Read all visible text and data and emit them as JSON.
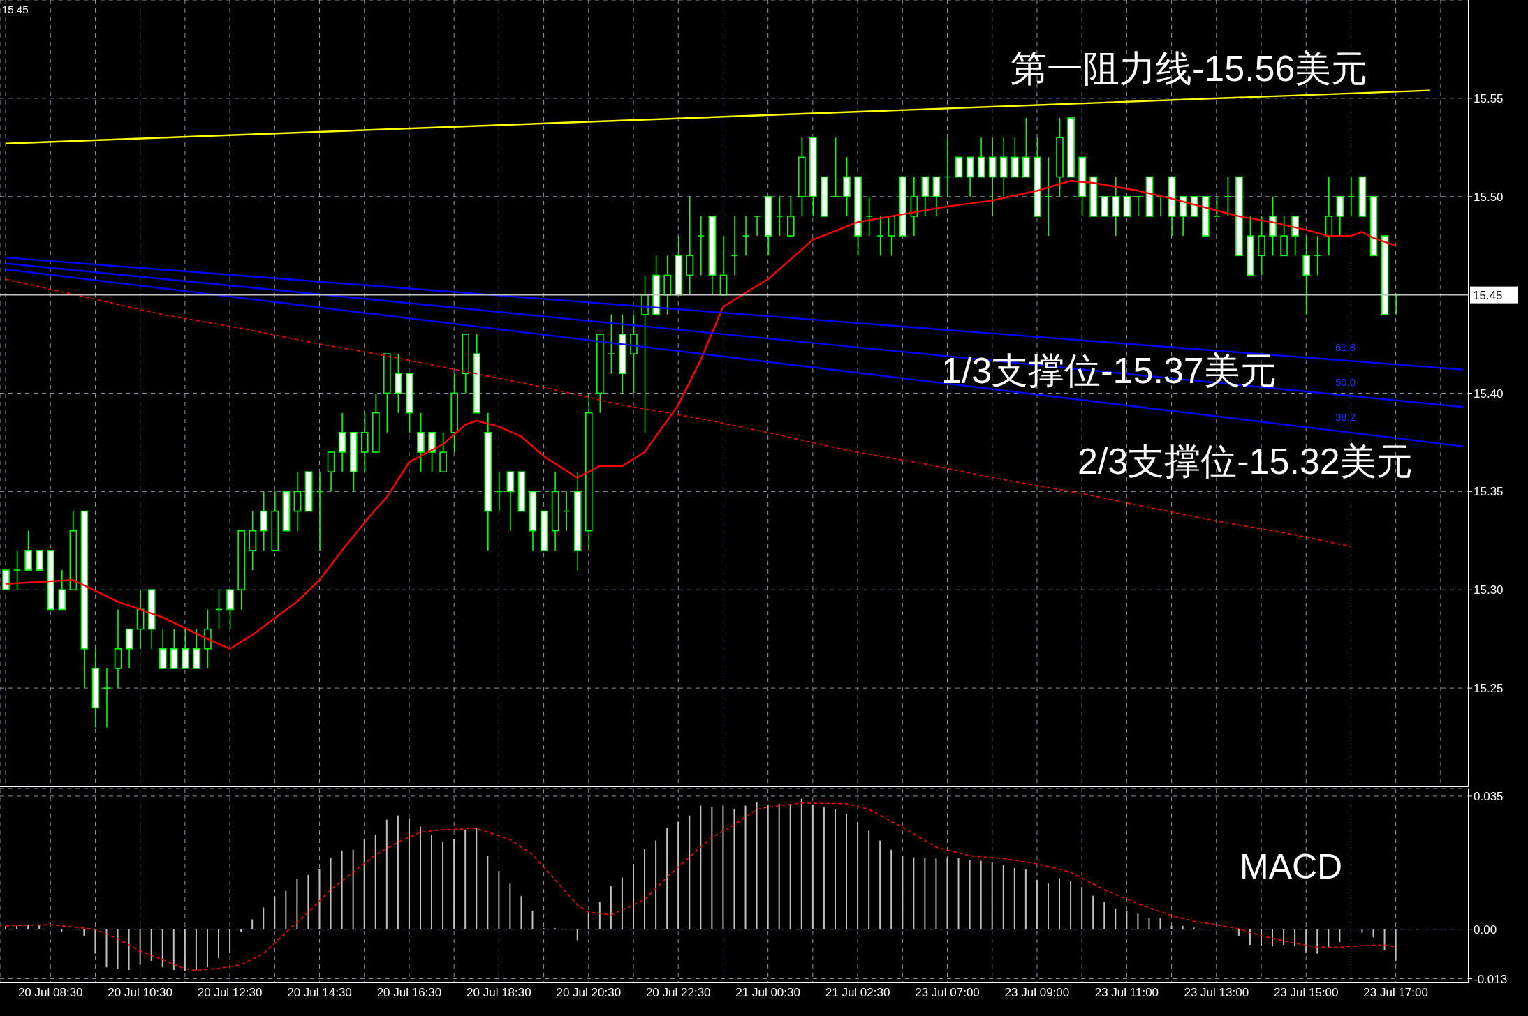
{
  "chart_data": [
    {
      "type": "candlestick",
      "color": "#00ff00",
      "grid": true,
      "ylim": [
        15.2,
        15.6
      ],
      "yticks": [
        15.25,
        {
          "value": 15.3,
          "label": "15.30"
        },
        15.35,
        {
          "value": 15.4,
          "label": "15.40"
        },
        {
          "value": 15.5,
          "label": "15.50"
        },
        15.55
      ],
      "ref_lines": [
        {
          "axis": "y",
          "value": 15.45,
          "label": "15.45",
          "color": "#c0c0c0"
        }
      ],
      "annotations": [
        "15.45",
        "第一阻力线-15.56美元",
        "1/3支撑位-15.37美元",
        "2/3支撑位-15.32美元",
        "61.8",
        "50.0",
        "38.2"
      ],
      "categories": [
        null,
        null,
        null,
        null,
        null,
        null,
        null,
        null,
        null,
        null,
        null,
        null,
        null,
        null,
        null,
        null,
        null,
        null,
        null,
        null,
        null,
        null,
        null,
        null,
        null,
        null,
        null,
        null,
        null,
        null,
        null,
        null,
        null,
        null,
        null,
        null,
        null,
        null,
        null,
        null,
        null,
        null,
        null,
        null,
        null,
        null,
        null,
        null,
        null,
        null,
        null,
        null,
        null,
        null,
        null,
        null,
        null,
        null,
        null,
        null,
        null,
        null,
        null,
        null,
        null,
        null,
        null,
        null,
        null,
        null,
        null,
        null,
        null,
        null,
        null,
        null,
        null,
        null,
        null,
        null,
        null,
        null,
        null,
        null,
        null,
        null,
        null,
        null,
        null,
        null,
        null,
        null,
        null,
        null,
        null,
        null,
        null,
        null,
        null,
        null,
        null,
        null,
        null,
        null,
        null,
        null,
        null,
        null,
        null,
        null,
        null,
        null,
        null,
        null,
        null,
        null,
        null,
        null,
        null,
        null,
        null,
        null,
        null,
        null,
        null,
        null,
        null,
        null,
        null,
        null,
        null
      ],
      "ohlc": [
        [
          15.31,
          15.31,
          15.3,
          15.3
        ],
        [
          15.31,
          15.32,
          15.3,
          15.31
        ],
        [
          15.32,
          15.33,
          15.31,
          15.31
        ],
        [
          15.32,
          15.32,
          15.31,
          15.31
        ],
        [
          15.32,
          15.32,
          15.29,
          15.29
        ],
        [
          15.3,
          15.31,
          15.29,
          15.29
        ],
        [
          15.3,
          15.34,
          15.3,
          15.33
        ],
        [
          15.34,
          15.34,
          15.25,
          15.27
        ],
        [
          15.26,
          15.27,
          15.23,
          15.24
        ],
        [
          15.25,
          15.26,
          15.23,
          15.25
        ],
        [
          15.26,
          15.29,
          15.25,
          15.27
        ],
        [
          15.28,
          15.28,
          15.26,
          15.27
        ],
        [
          15.28,
          15.3,
          15.27,
          15.29
        ],
        [
          15.3,
          15.3,
          15.27,
          15.28
        ],
        [
          15.27,
          15.28,
          15.26,
          15.26
        ],
        [
          15.27,
          15.28,
          15.26,
          15.26
        ],
        [
          15.27,
          15.28,
          15.26,
          15.26
        ],
        [
          15.27,
          15.28,
          15.26,
          15.26
        ],
        [
          15.27,
          15.29,
          15.26,
          15.28
        ],
        [
          15.29,
          15.3,
          15.28,
          15.29
        ],
        [
          15.3,
          15.3,
          15.28,
          15.29
        ],
        [
          15.3,
          15.33,
          15.29,
          15.33
        ],
        [
          15.32,
          15.34,
          15.31,
          15.33
        ],
        [
          15.34,
          15.35,
          15.32,
          15.33
        ],
        [
          15.32,
          15.35,
          15.32,
          15.34
        ],
        [
          15.35,
          15.35,
          15.33,
          15.33
        ],
        [
          15.34,
          15.36,
          15.33,
          15.35
        ],
        [
          15.36,
          15.36,
          15.34,
          15.34
        ],
        [
          15.35,
          15.36,
          15.32,
          15.35
        ],
        [
          15.36,
          15.37,
          15.35,
          15.37
        ],
        [
          15.38,
          15.39,
          15.36,
          15.37
        ],
        [
          15.38,
          15.38,
          15.35,
          15.36
        ],
        [
          15.37,
          15.39,
          15.36,
          15.38
        ],
        [
          15.37,
          15.4,
          15.37,
          15.39
        ],
        [
          15.4,
          15.42,
          15.38,
          15.42
        ],
        [
          15.41,
          15.42,
          15.39,
          15.4
        ],
        [
          15.41,
          15.41,
          15.38,
          15.39
        ],
        [
          15.38,
          15.39,
          15.36,
          15.37
        ],
        [
          15.38,
          15.38,
          15.36,
          15.37
        ],
        [
          15.36,
          15.38,
          15.36,
          15.37
        ],
        [
          15.38,
          15.41,
          15.37,
          15.4
        ],
        [
          15.41,
          15.43,
          15.4,
          15.43
        ],
        [
          15.42,
          15.43,
          15.39,
          15.39
        ],
        [
          15.38,
          15.39,
          15.32,
          15.34
        ],
        [
          15.35,
          15.36,
          15.34,
          15.35
        ],
        [
          15.36,
          15.36,
          15.33,
          15.35
        ],
        [
          15.36,
          15.36,
          15.34,
          15.34
        ],
        [
          15.35,
          15.35,
          15.32,
          15.33
        ],
        [
          15.34,
          15.34,
          15.32,
          15.32
        ],
        [
          15.33,
          15.36,
          15.32,
          15.35
        ],
        [
          15.34,
          15.35,
          15.33,
          15.34
        ],
        [
          15.35,
          15.36,
          15.31,
          15.32
        ],
        [
          15.33,
          15.4,
          15.32,
          15.39
        ],
        [
          15.4,
          15.43,
          15.39,
          15.43
        ],
        [
          15.42,
          15.44,
          15.41,
          15.42
        ],
        [
          15.43,
          15.44,
          15.4,
          15.41
        ],
        [
          15.42,
          15.44,
          15.4,
          15.43
        ],
        [
          15.44,
          15.46,
          15.38,
          15.45
        ],
        [
          15.46,
          15.47,
          15.44,
          15.44
        ],
        [
          15.45,
          15.47,
          15.44,
          15.46
        ],
        [
          15.47,
          15.48,
          15.45,
          15.45
        ],
        [
          15.46,
          15.5,
          15.45,
          15.47
        ],
        [
          15.48,
          15.49,
          15.46,
          15.48
        ],
        [
          15.49,
          15.49,
          15.45,
          15.46
        ],
        [
          15.45,
          15.48,
          15.45,
          15.46
        ],
        [
          15.47,
          15.49,
          15.46,
          15.47
        ],
        [
          15.48,
          15.49,
          15.47,
          15.48
        ],
        [
          15.49,
          15.49,
          15.48,
          15.49
        ],
        [
          15.5,
          15.5,
          15.47,
          15.48
        ],
        [
          15.49,
          15.5,
          15.48,
          15.49
        ],
        [
          15.48,
          15.5,
          15.48,
          15.49
        ],
        [
          15.5,
          15.53,
          15.49,
          15.52
        ],
        [
          15.53,
          15.53,
          15.49,
          15.5
        ],
        [
          15.51,
          15.51,
          15.49,
          15.49
        ],
        [
          15.5,
          15.53,
          15.5,
          15.5
        ],
        [
          15.51,
          15.52,
          15.49,
          15.5
        ],
        [
          15.51,
          15.51,
          15.47,
          15.48
        ],
        [
          15.49,
          15.5,
          15.48,
          15.49
        ],
        [
          15.48,
          15.49,
          15.47,
          15.48
        ],
        [
          15.48,
          15.49,
          15.47,
          15.49
        ],
        [
          15.51,
          15.51,
          15.48,
          15.48
        ],
        [
          15.49,
          15.51,
          15.48,
          15.5
        ],
        [
          15.51,
          15.51,
          15.49,
          15.5
        ],
        [
          15.51,
          15.51,
          15.49,
          15.5
        ],
        [
          15.51,
          15.53,
          15.5,
          15.51
        ],
        [
          15.52,
          15.52,
          15.51,
          15.51
        ],
        [
          15.52,
          15.52,
          15.5,
          15.51
        ],
        [
          15.52,
          15.53,
          15.51,
          15.51
        ],
        [
          15.52,
          15.53,
          15.49,
          15.51
        ],
        [
          15.52,
          15.53,
          15.5,
          15.51
        ],
        [
          15.52,
          15.53,
          15.51,
          15.51
        ],
        [
          15.52,
          15.54,
          15.51,
          15.51
        ],
        [
          15.52,
          15.53,
          15.49,
          15.49
        ],
        [
          15.5,
          15.52,
          15.48,
          15.5
        ],
        [
          15.51,
          15.54,
          15.5,
          15.53
        ],
        [
          15.54,
          15.54,
          15.51,
          15.51
        ],
        [
          15.52,
          15.52,
          15.49,
          15.5
        ],
        [
          15.51,
          15.51,
          15.49,
          15.49
        ],
        [
          15.5,
          15.5,
          15.49,
          15.49
        ],
        [
          15.5,
          15.51,
          15.48,
          15.49
        ],
        [
          15.5,
          15.5,
          15.49,
          15.49
        ],
        [
          15.5,
          15.5,
          15.49,
          15.5
        ],
        [
          15.51,
          15.51,
          15.49,
          15.49
        ],
        [
          15.5,
          15.5,
          15.49,
          15.5
        ],
        [
          15.51,
          15.51,
          15.48,
          15.49
        ],
        [
          15.5,
          15.5,
          15.48,
          15.49
        ],
        [
          15.5,
          15.5,
          15.49,
          15.49
        ],
        [
          15.5,
          15.5,
          15.48,
          15.48
        ],
        [
          15.49,
          15.5,
          15.49,
          15.49
        ],
        [
          15.5,
          15.51,
          15.49,
          15.5
        ],
        [
          15.51,
          15.51,
          15.47,
          15.47
        ],
        [
          15.48,
          15.49,
          15.46,
          15.46
        ],
        [
          15.47,
          15.49,
          15.46,
          15.48
        ],
        [
          15.49,
          15.5,
          15.47,
          15.48
        ],
        [
          15.47,
          15.49,
          15.47,
          15.48
        ],
        [
          15.49,
          15.49,
          15.47,
          15.48
        ],
        [
          15.47,
          15.48,
          15.44,
          15.46
        ],
        [
          15.47,
          15.48,
          15.46,
          15.47
        ],
        [
          15.48,
          15.51,
          15.47,
          15.49
        ],
        [
          15.5,
          15.5,
          15.48,
          15.49
        ],
        [
          15.5,
          15.51,
          15.49,
          15.5
        ],
        [
          15.51,
          15.51,
          15.49,
          15.49
        ],
        [
          15.5,
          15.5,
          15.47,
          15.47
        ],
        [
          15.48,
          15.48,
          15.44,
          15.44
        ],
        [
          15.45,
          15.45,
          15.44,
          15.45
        ],
        null,
        null,
        null,
        null,
        null,
        null
      ],
      "series": [
        {
          "type": "line",
          "color": "#ff0000",
          "values": [
            15.303,
            null,
            null,
            null,
            null,
            null,
            15.305,
            null,
            null,
            null,
            15.294,
            null,
            null,
            null,
            15.286,
            null,
            null,
            null,
            15.275,
            null,
            15.27,
            null,
            15.277,
            null,
            null,
            null,
            15.294,
            null,
            15.305,
            null,
            15.32,
            null,
            null,
            15.341,
            15.347,
            null,
            15.365,
            null,
            null,
            15.374,
            null,
            15.384,
            15.386,
            null,
            15.383,
            null,
            15.378,
            null,
            15.368,
            null,
            null,
            15.357,
            null,
            15.363,
            null,
            15.363,
            null,
            15.37,
            null,
            null,
            15.394,
            null,
            15.417,
            null,
            15.444,
            null,
            15.451,
            null,
            15.458,
            null,
            15.468,
            null,
            15.478,
            null,
            null,
            null,
            15.487,
            null,
            null,
            null,
            15.491,
            null,
            null,
            null,
            15.495,
            null,
            null,
            null,
            15.498,
            null,
            null,
            null,
            15.503,
            null,
            null,
            15.508,
            null,
            15.507,
            null,
            null,
            null,
            15.503,
            null,
            null,
            15.499,
            null,
            null,
            null,
            15.493,
            null,
            15.49,
            null,
            null,
            15.487,
            null,
            null,
            15.483,
            null,
            15.48,
            null,
            15.48,
            15.482,
            15.479,
            null,
            15.475,
            null,
            null,
            null,
            null,
            null,
            null
          ]
        },
        {
          "type": "line",
          "color": "#ff0000",
          "line_style": "dashed",
          "values": [
            15.458,
            null,
            null,
            null,
            null,
            null,
            null,
            15.449,
            null,
            null,
            null,
            null,
            null,
            null,
            15.44,
            null,
            null,
            null,
            null,
            null,
            null,
            15.433,
            null,
            null,
            null,
            null,
            null,
            null,
            15.425,
            null,
            null,
            null,
            null,
            null,
            15.419,
            null,
            null,
            null,
            null,
            null,
            null,
            15.411,
            null,
            null,
            null,
            null,
            null,
            null,
            15.403,
            null,
            null,
            null,
            null,
            null,
            null,
            15.394,
            null,
            null,
            null,
            null,
            null,
            null,
            15.387,
            null,
            null,
            null,
            null,
            null,
            15.38,
            null,
            null,
            null,
            null,
            null,
            null,
            15.371,
            null,
            null,
            null,
            null,
            null,
            null,
            15.364,
            null,
            null,
            null,
            null,
            null,
            null,
            15.356,
            null,
            null,
            null,
            null,
            null,
            null,
            15.349,
            null,
            null,
            null,
            null,
            15.343,
            null,
            null,
            null,
            null,
            null,
            null,
            15.335,
            null,
            null,
            null,
            null,
            null,
            null,
            15.328,
            null,
            null,
            null,
            null,
            15.322,
            null,
            null,
            null,
            null,
            null,
            null,
            null,
            null,
            null,
            null
          ]
        },
        {
          "type": "line",
          "color": "#ffff00",
          "values": [
            15.527,
            null,
            null,
            null,
            null,
            null,
            null,
            null,
            null,
            null,
            null,
            null,
            null,
            null,
            null,
            null,
            null,
            null,
            null,
            null,
            null,
            null,
            null,
            null,
            null,
            null,
            null,
            null,
            null,
            null,
            null,
            null,
            null,
            null,
            null,
            null,
            null,
            null,
            null,
            null,
            null,
            null,
            null,
            null,
            null,
            null,
            null,
            null,
            null,
            null,
            null,
            null,
            null,
            null,
            null,
            null,
            null,
            null,
            null,
            null,
            null,
            null,
            null,
            null,
            null,
            null,
            null,
            null,
            null,
            null,
            null,
            null,
            null,
            null,
            null,
            null,
            null,
            null,
            null,
            null,
            null,
            null,
            null,
            null,
            null,
            null,
            null,
            null,
            null,
            null,
            null,
            null,
            null,
            null,
            null,
            null,
            null,
            null,
            null,
            null,
            null,
            null,
            null,
            null,
            null,
            null,
            null,
            null,
            null,
            null,
            null,
            null,
            null,
            null,
            null,
            null,
            null,
            null,
            null,
            null,
            null,
            null,
            null,
            null,
            null,
            null,
            null,
            15.554,
            null,
            null,
            null
          ]
        },
        {
          "type": "line",
          "color": "#0000ff",
          "values": [
            15.469,
            null,
            null,
            null,
            null,
            null,
            null,
            null,
            null,
            null,
            null,
            null,
            null,
            null,
            null,
            null,
            null,
            null,
            null,
            null,
            null,
            null,
            null,
            null,
            null,
            null,
            null,
            null,
            null,
            null,
            null,
            null,
            null,
            null,
            null,
            null,
            null,
            null,
            null,
            null,
            null,
            null,
            null,
            null,
            null,
            null,
            null,
            null,
            null,
            null,
            null,
            null,
            null,
            null,
            null,
            null,
            null,
            null,
            null,
            null,
            null,
            null,
            null,
            null,
            null,
            null,
            null,
            null,
            null,
            null,
            null,
            null,
            null,
            null,
            null,
            null,
            null,
            null,
            null,
            null,
            null,
            null,
            null,
            null,
            null,
            null,
            null,
            null,
            null,
            null,
            null,
            null,
            null,
            null,
            null,
            null,
            null,
            null,
            null,
            null,
            null,
            null,
            null,
            null,
            null,
            null,
            null,
            null,
            null,
            null,
            null,
            null,
            null,
            null,
            null,
            null,
            null,
            null,
            null,
            null,
            null,
            null,
            null,
            null,
            null,
            null,
            null,
            null,
            null,
            null,
            15.412
          ]
        },
        {
          "type": "line",
          "color": "#0000ff",
          "values": [
            15.466,
            null,
            null,
            null,
            null,
            null,
            null,
            null,
            null,
            null,
            null,
            null,
            null,
            null,
            null,
            null,
            null,
            null,
            null,
            null,
            null,
            null,
            null,
            null,
            null,
            null,
            null,
            null,
            null,
            null,
            null,
            null,
            null,
            null,
            null,
            null,
            null,
            null,
            null,
            null,
            null,
            null,
            null,
            null,
            null,
            null,
            null,
            null,
            null,
            null,
            null,
            null,
            null,
            null,
            null,
            null,
            null,
            null,
            null,
            null,
            null,
            null,
            null,
            null,
            null,
            null,
            null,
            null,
            null,
            null,
            null,
            null,
            null,
            null,
            null,
            null,
            null,
            null,
            null,
            null,
            null,
            null,
            null,
            null,
            null,
            null,
            null,
            null,
            null,
            null,
            null,
            null,
            null,
            null,
            null,
            null,
            null,
            null,
            null,
            null,
            null,
            null,
            null,
            null,
            null,
            null,
            null,
            null,
            null,
            null,
            null,
            null,
            null,
            null,
            null,
            null,
            null,
            null,
            null,
            null,
            null,
            null,
            null,
            null,
            null,
            null,
            null,
            null,
            null,
            null,
            15.393
          ]
        },
        {
          "type": "line",
          "color": "#0000ff",
          "values": [
            15.463,
            null,
            null,
            null,
            null,
            null,
            null,
            null,
            null,
            null,
            null,
            null,
            null,
            null,
            null,
            null,
            null,
            null,
            null,
            null,
            null,
            null,
            null,
            null,
            null,
            null,
            null,
            null,
            null,
            null,
            null,
            null,
            null,
            null,
            null,
            null,
            null,
            null,
            null,
            null,
            null,
            null,
            null,
            null,
            null,
            null,
            null,
            null,
            null,
            null,
            null,
            null,
            null,
            null,
            null,
            null,
            null,
            null,
            null,
            null,
            null,
            null,
            null,
            null,
            null,
            null,
            null,
            null,
            null,
            null,
            null,
            null,
            null,
            null,
            null,
            null,
            null,
            null,
            null,
            null,
            null,
            null,
            null,
            null,
            null,
            null,
            null,
            null,
            null,
            null,
            null,
            null,
            null,
            null,
            null,
            null,
            null,
            null,
            null,
            null,
            null,
            null,
            null,
            null,
            null,
            null,
            null,
            null,
            null,
            null,
            null,
            null,
            null,
            null,
            null,
            null,
            null,
            null,
            null,
            null,
            null,
            null,
            null,
            null,
            null,
            null,
            null,
            null,
            null,
            null,
            15.373
          ]
        }
      ]
    },
    {
      "type": "bar",
      "title": "MACD",
      "grid": true,
      "ylim": [
        -0.014,
        0.037
      ],
      "yticks": [
        -0.013,
        {
          "value": 0,
          "label": "0.00"
        },
        0.035
      ],
      "categories": [
        null,
        null,
        null,
        null,
        "20 Jul 08:30",
        null,
        null,
        null,
        null,
        null,
        null,
        null,
        "20 Jul 10:30",
        null,
        null,
        null,
        null,
        null,
        null,
        null,
        "20 Jul 12:30",
        null,
        null,
        null,
        null,
        null,
        null,
        null,
        "20 Jul 14:30",
        null,
        null,
        null,
        null,
        null,
        null,
        null,
        "20 Jul 16:30",
        null,
        null,
        null,
        null,
        null,
        null,
        null,
        "20 Jul 18:30",
        null,
        null,
        null,
        null,
        null,
        null,
        null,
        "20 Jul 20:30",
        null,
        null,
        null,
        null,
        null,
        null,
        null,
        "20 Jul 22:30",
        null,
        null,
        null,
        null,
        null,
        null,
        null,
        "21 Jul 00:30",
        null,
        null,
        null,
        null,
        null,
        null,
        null,
        "21 Jul 02:30",
        null,
        null,
        null,
        null,
        null,
        null,
        null,
        "23 Jul 07:00",
        null,
        null,
        null,
        null,
        null,
        null,
        null,
        "23 Jul 09:00",
        null,
        null,
        null,
        null,
        null,
        null,
        null,
        "23 Jul 11:00",
        null,
        null,
        null,
        null,
        null,
        null,
        null,
        "23 Jul 13:00",
        null,
        null,
        null,
        null,
        null,
        null,
        null,
        "23 Jul 15:00",
        null,
        null,
        null,
        null,
        null,
        null,
        null,
        "23 Jul 17:00",
        null,
        null,
        null,
        null,
        null,
        null
      ],
      "series": [
        {
          "type": "bar",
          "color": "#c0c0c0",
          "values": [
            0.0008,
            0.0009,
            0.0012,
            0.001,
            0,
            -0.0008,
            0,
            -0.0017,
            -0.0064,
            -0.01,
            -0.0104,
            -0.0107,
            -0.0093,
            -0.0083,
            -0.01,
            -0.0107,
            -0.0109,
            -0.0107,
            -0.01,
            -0.0076,
            -0.0063,
            -0.0008,
            0.0026,
            0.0057,
            0.0087,
            0.0101,
            0.0133,
            0.0143,
            0.0159,
            0.0188,
            0.0207,
            0.0209,
            0.0238,
            0.0249,
            0.0288,
            0.0299,
            0.0292,
            0.027,
            0.0249,
            0.0229,
            0.0238,
            0.0262,
            0.0267,
            0.0192,
            0.0153,
            0.012,
            0.0087,
            0.0049,
            0.0003,
            0.0003,
            0,
            -0.0029,
            0.0045,
            0.0071,
            0.0113,
            0.0136,
            0.0172,
            0.0212,
            0.0233,
            0.0266,
            0.0283,
            0.0299,
            0.0325,
            0.0321,
            0.0325,
            0.0317,
            0.0325,
            0.0334,
            0.0328,
            0.033,
            0.0328,
            0.0343,
            0.0328,
            0.0321,
            0.0315,
            0.0304,
            0.0282,
            0.0259,
            0.0233,
            0.0209,
            0.0193,
            0.0189,
            0.0187,
            0.0186,
            0.0189,
            0.0187,
            0.0183,
            0.018,
            0.0176,
            0.017,
            0.0161,
            0.0157,
            0.013,
            0.012,
            0.0134,
            0.0128,
            0.0111,
            0.0088,
            0.0071,
            0.0054,
            0.0049,
            0.0041,
            0.0029,
            0.0029,
            0.0009,
            0.0009,
            0.0004,
            0,
            0,
            null,
            -0.0018,
            -0.0041,
            -0.0043,
            -0.0045,
            -0.0041,
            -0.0045,
            -0.0061,
            -0.0064,
            -0.0047,
            -0.0034,
            0,
            -0.0009,
            -0.0021,
            -0.0054,
            -0.0083,
            null,
            null,
            null,
            null,
            null,
            null
          ]
        },
        {
          "type": "line",
          "color": "#ff0000",
          "line_style": "dashed",
          "values": [
            0.0009,
            null,
            null,
            null,
            0.0012,
            null,
            null,
            null,
            0,
            null,
            -0.0025,
            null,
            -0.0057,
            null,
            -0.008,
            null,
            -0.0104,
            -0.0108,
            null,
            -0.0103,
            null,
            -0.0093,
            null,
            -0.0064,
            null,
            -0.0008,
            null,
            0.0045,
            null,
            0.0104,
            null,
            0.015,
            null,
            0.0196,
            null,
            0.0229,
            null,
            0.0255,
            null,
            0.0262,
            null,
            null,
            0.0265,
            null,
            null,
            0.0236,
            null,
            0.0196,
            null,
            0.013,
            null,
            0.0064,
            0.0045,
            null,
            0.0038,
            null,
            null,
            0.0078,
            null,
            0.0137,
            null,
            0.019,
            null,
            0.0242,
            null,
            0.0275,
            null,
            0.0315,
            0.0321,
            null,
            null,
            0.0332,
            null,
            null,
            null,
            0.033,
            null,
            0.0315,
            null,
            null,
            0.0268,
            null,
            null,
            0.0216,
            null,
            null,
            0.0193,
            null,
            null,
            0.0186,
            null,
            null,
            0.0172,
            null,
            null,
            0.015,
            null,
            null,
            0.0104,
            null,
            null,
            0.0067,
            null,
            null,
            0.0036,
            null,
            0.0021,
            null,
            0.0012,
            null,
            0.0001,
            null,
            -0.0017,
            null,
            null,
            -0.0037,
            null,
            -0.0047,
            null,
            -0.0047,
            null,
            -0.0043,
            null,
            -0.0041,
            -0.0047,
            null,
            null,
            null,
            null,
            null,
            null
          ]
        }
      ]
    }
  ]
}
